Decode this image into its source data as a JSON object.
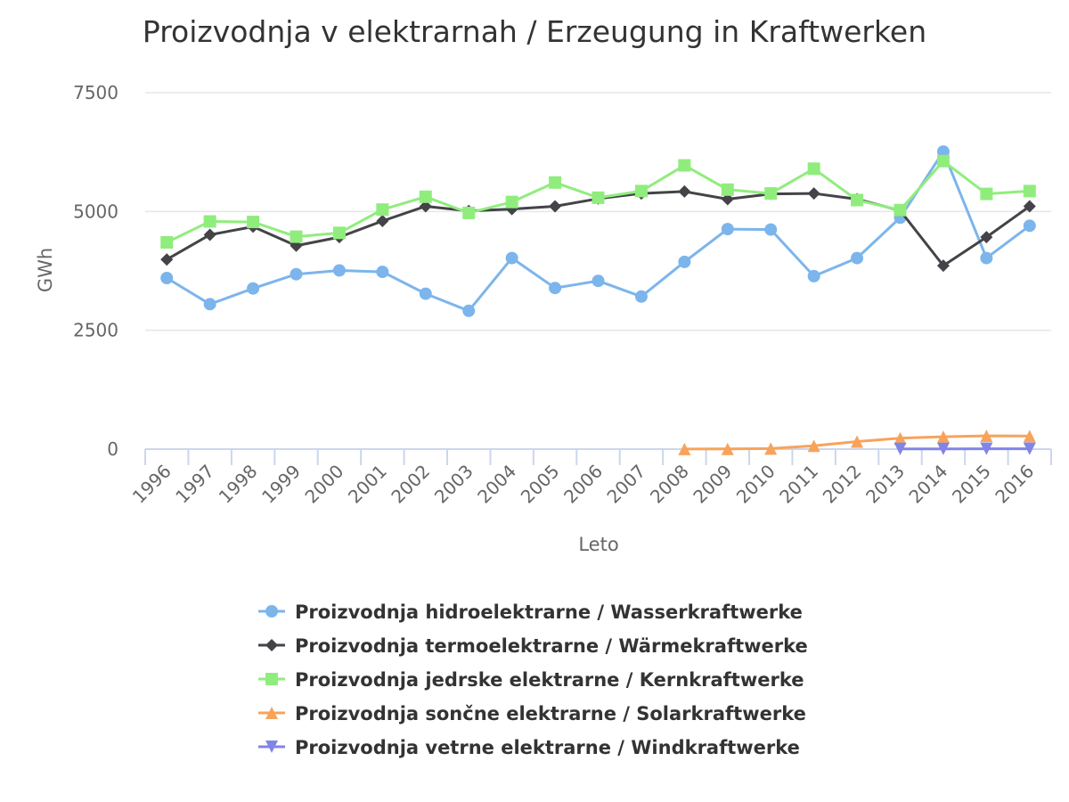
{
  "chart_data": {
    "type": "line",
    "title": "Proizvodnja v elektrarnah / Erzeugung in Kraftwerken",
    "xlabel": "Leto",
    "ylabel": "GWh",
    "ylim": [
      0,
      7500
    ],
    "yticks": [
      0,
      2500,
      5000,
      7500
    ],
    "grid": true,
    "legend_position": "bottom",
    "categories": [
      "1996",
      "1997",
      "1998",
      "1999",
      "2000",
      "2001",
      "2002",
      "2003",
      "2004",
      "2005",
      "2006",
      "2007",
      "2008",
      "2009",
      "2010",
      "2011",
      "2012",
      "2013",
      "2014",
      "2015",
      "2016"
    ],
    "series": [
      {
        "name": "Proizvodnja hidroelektrarne / Wasserkraftwerke",
        "color": "#7cb5ec",
        "marker": "circle",
        "values": [
          3600,
          3050,
          3380,
          3680,
          3760,
          3730,
          3270,
          2910,
          4020,
          3390,
          3540,
          3210,
          3940,
          4630,
          4620,
          3640,
          4020,
          4870,
          6260,
          4020,
          4700
        ]
      },
      {
        "name": "Proizvodnja termoelektrarne / Wärmekraftwerke",
        "color": "#434348",
        "marker": "diamond",
        "values": [
          3990,
          4510,
          4680,
          4280,
          4460,
          4800,
          5110,
          5010,
          5050,
          5110,
          5270,
          5380,
          5420,
          5260,
          5370,
          5380,
          5260,
          5020,
          3860,
          4460,
          5110
        ]
      },
      {
        "name": "Proizvodnja jedrske elektrarne / Kernkraftwerke",
        "color": "#90ed7d",
        "marker": "square",
        "values": [
          4350,
          4790,
          4780,
          4470,
          4550,
          5040,
          5310,
          4970,
          5200,
          5610,
          5290,
          5430,
          5970,
          5460,
          5380,
          5900,
          5240,
          5030,
          6060,
          5370,
          5430
        ]
      },
      {
        "name": "Proizvodnja sončne elektrarne / Solarkraftwerke",
        "color": "#f7a35c",
        "marker": "triangle",
        "values": [
          null,
          null,
          null,
          null,
          null,
          null,
          null,
          null,
          null,
          null,
          null,
          null,
          2,
          5,
          12,
          70,
          160,
          230,
          260,
          280,
          275
        ]
      },
      {
        "name": "Proizvodnja vetrne elektrarne / Windkraftwerke",
        "color": "#8085e9",
        "marker": "triangle-down",
        "values": [
          null,
          null,
          null,
          null,
          null,
          null,
          null,
          null,
          null,
          null,
          null,
          null,
          null,
          null,
          null,
          null,
          null,
          4,
          4,
          6,
          6
        ]
      }
    ]
  }
}
